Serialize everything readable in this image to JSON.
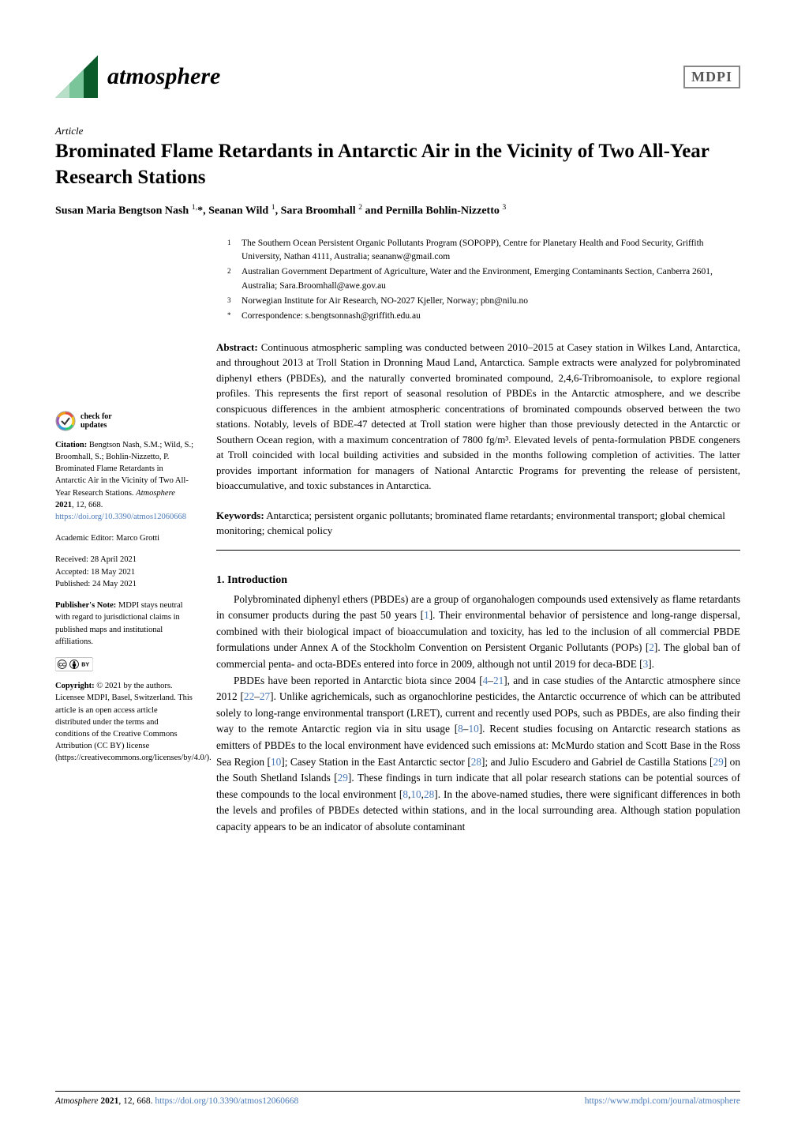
{
  "journal": {
    "name": "atmosphere",
    "publisher_logo": "MDPI",
    "icon_colors": {
      "a": "#0a5a2a",
      "b": "#b8e0c8",
      "c": "#7ac59a"
    }
  },
  "article": {
    "type": "Article",
    "title": "Brominated Flame Retardants in Antarctic Air in the Vicinity of Two All-Year Research Stations",
    "authors_html": "Susan Maria Bengtson Nash <sup>1,</sup>*, Seanan Wild <sup>1</sup>, Sara Broomhall <sup>2</sup> and Pernilla Bohlin-Nizzetto <sup>3</sup>"
  },
  "affiliations": [
    {
      "num": "1",
      "text": "The Southern Ocean Persistent Organic Pollutants Program (SOPOPP), Centre for Planetary Health and Food Security, Griffith University, Nathan 4111, Australia; seananw@gmail.com"
    },
    {
      "num": "2",
      "text": "Australian Government Department of Agriculture, Water and the Environment, Emerging Contaminants Section, Canberra 2601, Australia; Sara.Broomhall@awe.gov.au"
    },
    {
      "num": "3",
      "text": "Norwegian Institute for Air Research, NO-2027 Kjeller, Norway; pbn@nilu.no"
    },
    {
      "num": "*",
      "text": "Correspondence: s.bengtsonnash@griffith.edu.au"
    }
  ],
  "abstract": {
    "label": "Abstract:",
    "text": "Continuous atmospheric sampling was conducted between 2010–2015 at Casey station in Wilkes Land, Antarctica, and throughout 2013 at Troll Station in Dronning Maud Land, Antarctica. Sample extracts were analyzed for polybrominated diphenyl ethers (PBDEs), and the naturally converted brominated compound, 2,4,6-Tribromoanisole, to explore regional profiles. This represents the first report of seasonal resolution of PBDEs in the Antarctic atmosphere, and we describe conspicuous differences in the ambient atmospheric concentrations of brominated compounds observed between the two stations. Notably, levels of BDE-47 detected at Troll station were higher than those previously detected in the Antarctic or Southern Ocean region, with a maximum concentration of 7800 fg/m³. Elevated levels of penta-formulation PBDE congeners at Troll coincided with local building activities and subsided in the months following completion of activities. The latter provides important information for managers of National Antarctic Programs for preventing the release of persistent, bioaccumulative, and toxic substances in Antarctica."
  },
  "keywords": {
    "label": "Keywords:",
    "text": "Antarctica; persistent organic pollutants; brominated flame retardants; environmental transport; global chemical monitoring; chemical policy"
  },
  "sidebar": {
    "check_updates_line1": "check for",
    "check_updates_line2": "updates",
    "citation_label": "Citation:",
    "citation": "Bengtson Nash, S.M.; Wild, S.; Broomhall, S.; Bohlin-Nizzetto, P. Brominated Flame Retardants in Antarctic Air in the Vicinity of Two All-Year Research Stations. ",
    "citation_journal": "Atmosphere",
    "citation_ref": "2021",
    "citation_vol": ", 12, 668. ",
    "citation_doi": "https://doi.org/10.3390/atmos12060668",
    "editor_label": "Academic Editor: ",
    "editor": "Marco Grotti",
    "received": "Received: 28 April 2021",
    "accepted": "Accepted: 18 May 2021",
    "published": "Published: 24 May 2021",
    "pubnote_label": "Publisher's Note:",
    "pubnote": " MDPI stays neutral with regard to jurisdictional claims in published maps and institutional affiliations.",
    "copyright_label": "Copyright:",
    "copyright": " © 2021 by the authors. Licensee MDPI, Basel, Switzerland. This article is an open access article distributed under the terms and conditions of the Creative Commons Attribution (CC BY) license (https://creativecommons.org/licenses/by/4.0/)."
  },
  "section1": {
    "heading": "1. Introduction",
    "p1_pre": "Polybrominated diphenyl ethers (PBDEs) are a group of organohalogen compounds used extensively as flame retardants in consumer products during the past 50 years [",
    "p1_ref1": "1",
    "p1_mid1": "]. Their environmental behavior of persistence and long-range dispersal, combined with their biological impact of bioaccumulation and toxicity, has led to the inclusion of all commercial PBDE formulations under Annex A of the Stockholm Convention on Persistent Organic Pollutants (POPs) [",
    "p1_ref2": "2",
    "p1_mid2": "]. The global ban of commercial penta- and octa-BDEs entered into force in 2009, although not until 2019 for deca-BDE [",
    "p1_ref3": "3",
    "p1_post": "].",
    "p2_pre": "PBDEs have been reported in Antarctic biota since 2004 [",
    "p2_ref1": "4",
    "p2_dash1": "–",
    "p2_ref2": "21",
    "p2_mid1": "], and in case studies of the Antarctic atmosphere since 2012 [",
    "p2_ref3": "22",
    "p2_dash2": "–",
    "p2_ref4": "27",
    "p2_mid2": "]. Unlike agrichemicals, such as organochlorine pesticides, the Antarctic occurrence of which can be attributed solely to long-range environmental transport (LRET), current and recently used POPs, such as PBDEs, are also finding their way to the remote Antarctic region via in situ usage [",
    "p2_ref5": "8",
    "p2_dash3": "–",
    "p2_ref6": "10",
    "p2_mid3": "]. Recent studies focusing on Antarctic research stations as emitters of PBDEs to the local environment have evidenced such emissions at: McMurdo station and Scott Base in the Ross Sea Region [",
    "p2_ref7": "10",
    "p2_mid4": "]; Casey Station in the East Antarctic sector [",
    "p2_ref8": "28",
    "p2_mid5": "]; and Julio Escudero and Gabriel de Castilla Stations [",
    "p2_ref9": "29",
    "p2_mid6": "] on the South Shetland Islands [",
    "p2_ref10": "29",
    "p2_mid7": "]. These findings in turn indicate that all polar research stations can be potential sources of these compounds to the local environment [",
    "p2_ref11": "8",
    "p2_c1": ",",
    "p2_ref12": "10",
    "p2_c2": ",",
    "p2_ref13": "28",
    "p2_post": "]. In the above-named studies, there were significant differences in both the levels and profiles of PBDEs detected within stations, and in the local surrounding area. Although station population capacity appears to be an indicator of absolute contaminant"
  },
  "footer": {
    "left_pre": "Atmosphere ",
    "left_ref": "2021",
    "left_mid": ", 12, 668. ",
    "left_doi": "https://doi.org/10.3390/atmos12060668",
    "right": "https://www.mdpi.com/journal/atmosphere"
  },
  "colors": {
    "link": "#4a7ab8",
    "text": "#000000",
    "background": "#ffffff",
    "crossmark_rainbow": [
      "#e84c3d",
      "#f39c12",
      "#f1c40f",
      "#2ecc71",
      "#3498db",
      "#9b59b6"
    ]
  }
}
